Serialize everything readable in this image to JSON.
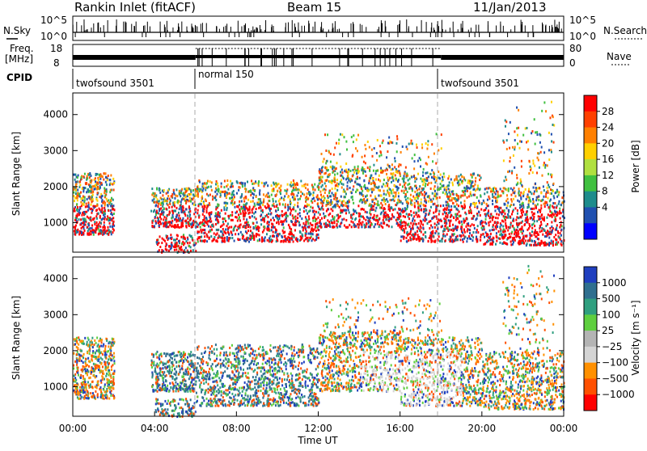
{
  "header": {
    "station": "Rankin Inlet (fitACF)",
    "beam": "Beam 15",
    "date": "11/Jan/2013"
  },
  "noise_panel": {
    "left_label": "N.Sky",
    "right_label": "N.Search",
    "left_ticks": [
      "10^5",
      "10^0"
    ],
    "right_ticks": [
      "10^5",
      "10^0"
    ]
  },
  "freq_panel": {
    "left_label_1": "Freq.",
    "left_label_2": "[MHz]",
    "right_label": "Nave",
    "left_ticks": [
      "18",
      "8"
    ],
    "right_ticks": [
      "80",
      "0"
    ]
  },
  "cpid_panel": {
    "label": "CPID",
    "segments": [
      {
        "name": "twofsound 3501",
        "start_hour": 0
      },
      {
        "name": "normal 150",
        "start_hour": 6
      },
      {
        "name": "twofsound 3501",
        "start_hour": 18
      }
    ]
  },
  "chart_data": [
    {
      "type": "heatmap",
      "title": "Power",
      "x_range_hours": [
        0,
        24
      ],
      "y_range_km": [
        180,
        4600
      ],
      "ylabel": "Slant Range [km]",
      "y_ticks": [
        "1000",
        "2000",
        "3000",
        "4000"
      ],
      "colorbar": {
        "label": "Power [dB]",
        "ticks": [
          "28",
          "24",
          "20",
          "16",
          "12",
          "8",
          "4"
        ],
        "colors": [
          "#ff0000",
          "#ff4000",
          "#ff8000",
          "#ffd000",
          "#b0e040",
          "#40c040",
          "#1e8c8c",
          "#2050b0",
          "#0000ff"
        ]
      }
    },
    {
      "type": "heatmap",
      "title": "Velocity",
      "x_range_hours": [
        0,
        24
      ],
      "y_range_km": [
        180,
        4600
      ],
      "ylabel": "Slant Range [km]",
      "y_ticks": [
        "1000",
        "2000",
        "3000",
        "4000"
      ],
      "xlabel": "Time UT",
      "x_ticks": [
        "00:00",
        "04:00",
        "08:00",
        "12:00",
        "16:00",
        "20:00",
        "00:00"
      ],
      "colorbar": {
        "label": "Velocity [m s⁻¹]",
        "ticks": [
          "1000",
          "500",
          "100",
          "25",
          "−25",
          "−100",
          "−500",
          "−1000"
        ],
        "colors": [
          "#1f3fbf",
          "#2f6f8f",
          "#2f9f7f",
          "#5fcf3f",
          "#b4b4b4",
          "#d4d4d4",
          "#ff9000",
          "#ff5000",
          "#ff0000"
        ]
      }
    }
  ]
}
